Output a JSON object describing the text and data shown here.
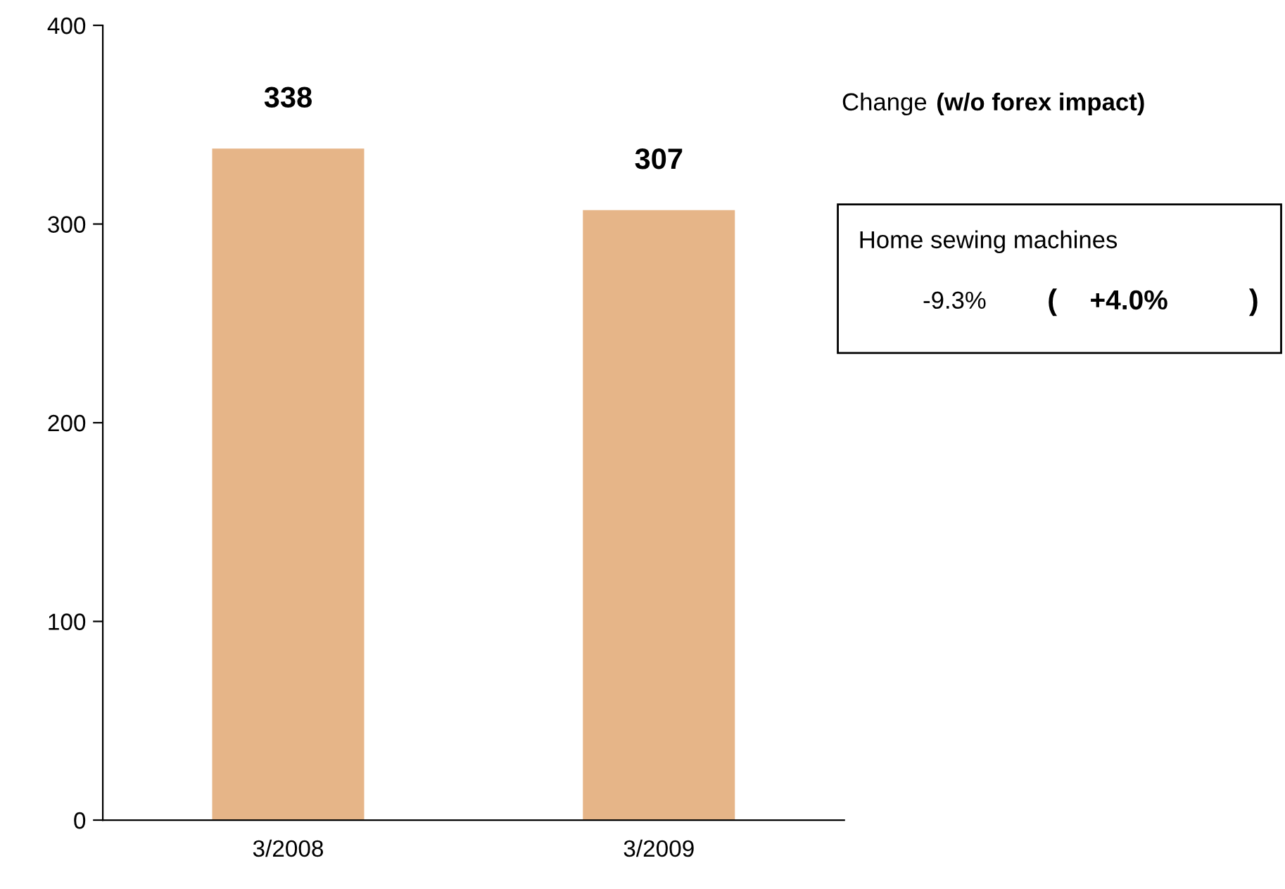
{
  "chart_data": {
    "type": "bar",
    "categories": [
      "3/2008",
      "3/2009"
    ],
    "values": [
      338,
      307
    ],
    "color": "#e6b588",
    "ylim": [
      0,
      400
    ],
    "yticks": [
      0,
      100,
      200,
      300,
      400
    ],
    "grid": false,
    "data_labels": true,
    "annotations": [
      "Change",
      "(w/o forex impact)",
      "Home sewing machines",
      "-9.3%",
      "(",
      "+4.0%",
      ")"
    ]
  }
}
